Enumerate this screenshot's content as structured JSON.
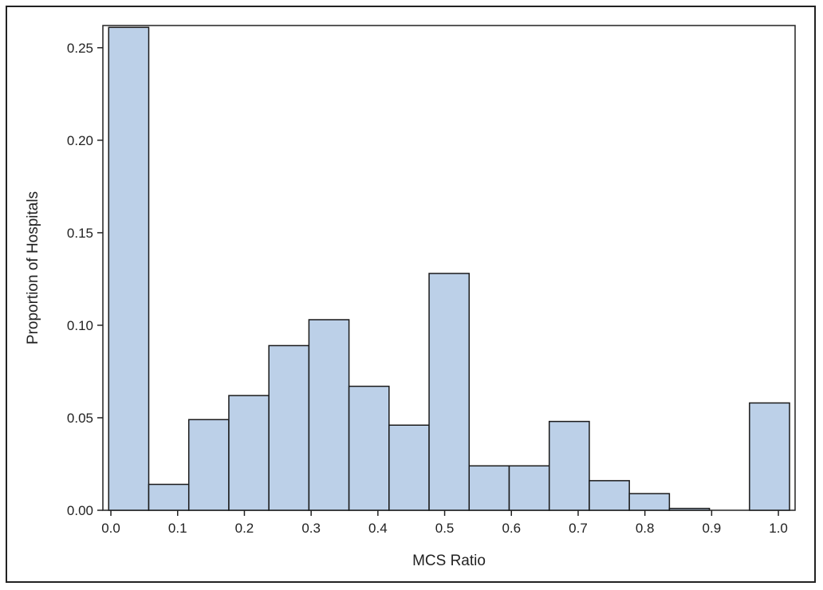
{
  "chart_data": {
    "type": "bar",
    "title": "",
    "xlabel": "MCS Ratio",
    "ylabel": "Proportion of Hospitals",
    "bin_width": 0.06,
    "bins": [
      {
        "start": -0.0033,
        "end": 0.0567,
        "value": 0.261
      },
      {
        "start": 0.0567,
        "end": 0.1167,
        "value": 0.014
      },
      {
        "start": 0.1167,
        "end": 0.1767,
        "value": 0.049
      },
      {
        "start": 0.1767,
        "end": 0.2367,
        "value": 0.062
      },
      {
        "start": 0.2367,
        "end": 0.2967,
        "value": 0.089
      },
      {
        "start": 0.2967,
        "end": 0.3567,
        "value": 0.103
      },
      {
        "start": 0.3567,
        "end": 0.4167,
        "value": 0.067
      },
      {
        "start": 0.4167,
        "end": 0.4767,
        "value": 0.046
      },
      {
        "start": 0.4767,
        "end": 0.5367,
        "value": 0.128
      },
      {
        "start": 0.5367,
        "end": 0.5967,
        "value": 0.024
      },
      {
        "start": 0.5967,
        "end": 0.6567,
        "value": 0.024
      },
      {
        "start": 0.6567,
        "end": 0.7167,
        "value": 0.048
      },
      {
        "start": 0.7167,
        "end": 0.7767,
        "value": 0.016
      },
      {
        "start": 0.7767,
        "end": 0.8367,
        "value": 0.009
      },
      {
        "start": 0.8367,
        "end": 0.8967,
        "value": 0.001
      },
      {
        "start": 0.8967,
        "end": 0.9567,
        "value": 0.0
      },
      {
        "start": 0.9567,
        "end": 1.0167,
        "value": 0.058
      }
    ],
    "xlim": [
      -0.012,
      1.025
    ],
    "ylim": [
      0,
      0.262
    ],
    "xticks": [
      0.0,
      0.1,
      0.2,
      0.3,
      0.4,
      0.5,
      0.6,
      0.7,
      0.8,
      0.9,
      1.0
    ],
    "xtick_labels": [
      "0.0",
      "0.1",
      "0.2",
      "0.3",
      "0.4",
      "0.5",
      "0.6",
      "0.7",
      "0.8",
      "0.9",
      "1.0"
    ],
    "yticks": [
      0.0,
      0.05,
      0.1,
      0.15,
      0.2,
      0.25
    ],
    "ytick_labels": [
      "0.00",
      "0.05",
      "0.10",
      "0.15",
      "0.20",
      "0.25"
    ],
    "grid": false,
    "legend": "none",
    "colors": {
      "bar_fill": "#bcd0e8",
      "bar_stroke": "#1a1a1a",
      "axis": "#222222"
    }
  }
}
